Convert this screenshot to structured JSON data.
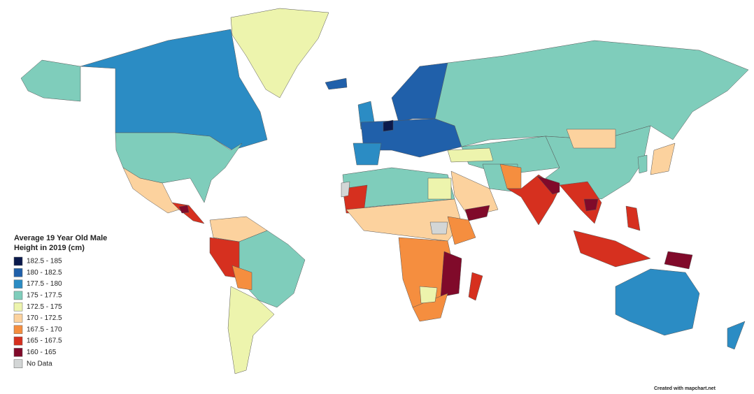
{
  "legend": {
    "title_lines": [
      "Average 19 Year Old Male",
      "Height in 2019 (cm)"
    ],
    "items": [
      {
        "label": "182.5 - 185",
        "color": "#0b1a4c"
      },
      {
        "label": "180 - 182.5",
        "color": "#2060aa"
      },
      {
        "label": "177.5 - 180",
        "color": "#2b8cc4"
      },
      {
        "label": "175 - 177.5",
        "color": "#7fcdbb"
      },
      {
        "label": "172.5 - 175",
        "color": "#edf4ad"
      },
      {
        "label": "170 - 172.5",
        "color": "#fcd29e"
      },
      {
        "label": "167.5 - 170",
        "color": "#f58e3f"
      },
      {
        "label": "165 - 167.5",
        "color": "#d6301f"
      },
      {
        "label": "160 - 165",
        "color": "#800a2a"
      },
      {
        "label": "No Data",
        "color": "#d3d6d6"
      }
    ]
  },
  "credit": "Created with mapchart.net"
}
